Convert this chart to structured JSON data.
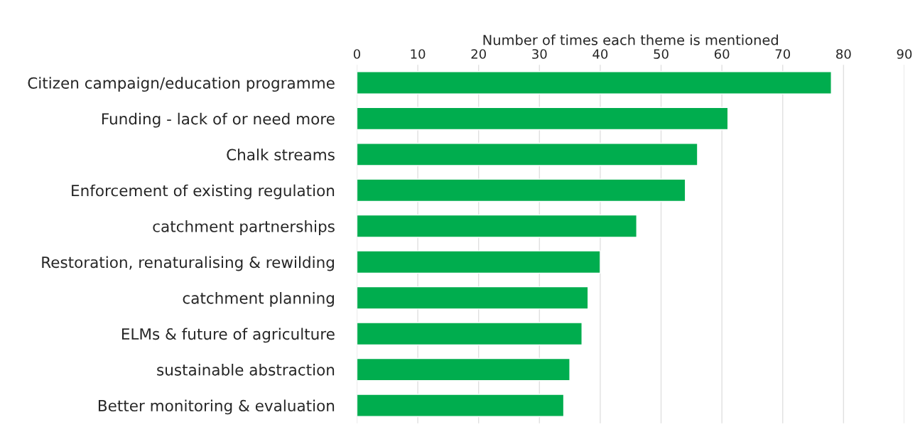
{
  "chart_data": {
    "type": "bar",
    "orientation": "horizontal",
    "xlabel": "Number of times each theme is mentioned",
    "categories": [
      "Citizen campaign/education programme",
      "Funding - lack of or need more",
      "Chalk streams",
      "Enforcement of existing regulation",
      "catchment partnerships",
      "Restoration, renaturalising & rewilding",
      "catchment planning",
      "ELMs & future of agriculture",
      "sustainable abstraction",
      "Better monitoring & evaluation"
    ],
    "values": [
      78,
      61,
      56,
      54,
      46,
      40,
      38,
      37,
      35,
      34
    ],
    "color": "#00ad4e",
    "xlim": [
      0,
      90
    ],
    "xticks": [
      0,
      10,
      20,
      30,
      40,
      50,
      60,
      70,
      80,
      90
    ],
    "grid": "x"
  }
}
